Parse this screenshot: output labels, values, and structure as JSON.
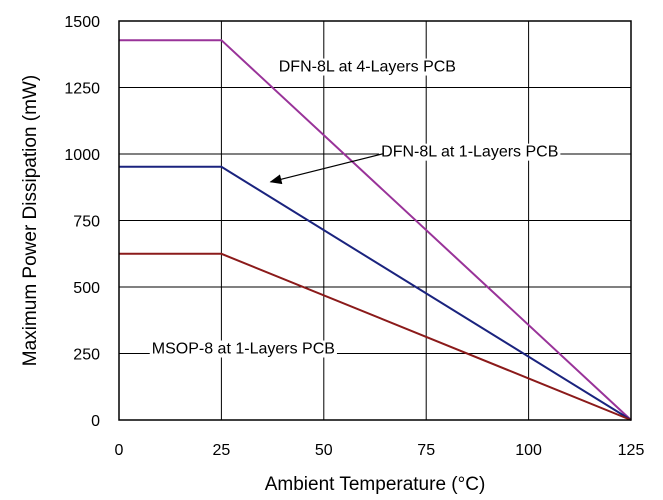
{
  "chart_data": {
    "type": "line",
    "xlabel": "Ambient Temperature (°C)",
    "ylabel": "Maximum Power Dissipation (mW)",
    "xlim": [
      0,
      125
    ],
    "ylim": [
      0,
      1500
    ],
    "xticks": [
      0,
      25,
      50,
      75,
      100,
      125
    ],
    "yticks": [
      0,
      250,
      500,
      750,
      1000,
      1250,
      1500
    ],
    "grid": true,
    "series": [
      {
        "name": "DFN-8L at 4-Layers PCB",
        "color": "#993399",
        "x": [
          0,
          25,
          125
        ],
        "y": [
          1428,
          1428,
          0
        ]
      },
      {
        "name": "DFN-8L at 1-Layers PCB",
        "color": "#1a237e",
        "x": [
          0,
          25,
          125
        ],
        "y": [
          952,
          952,
          0
        ]
      },
      {
        "name": "MSOP-8 at 1-Layers PCB",
        "color": "#8b1a1a",
        "x": [
          0,
          25,
          125
        ],
        "y": [
          625,
          625,
          0
        ]
      }
    ],
    "annotations": [
      {
        "text": "DFN-8L at 4-Layers PCB",
        "series": 0,
        "x": 39,
        "y": 1310
      },
      {
        "text": "DFN-8L at 1-Layers PCB",
        "series": 1,
        "x": 64,
        "y": 990,
        "arrow_to": {
          "x": 37,
          "y": 895
        }
      },
      {
        "text": "MSOP-8 at 1-Layers PCB",
        "series": 2,
        "x": 8,
        "y": 250
      }
    ]
  }
}
